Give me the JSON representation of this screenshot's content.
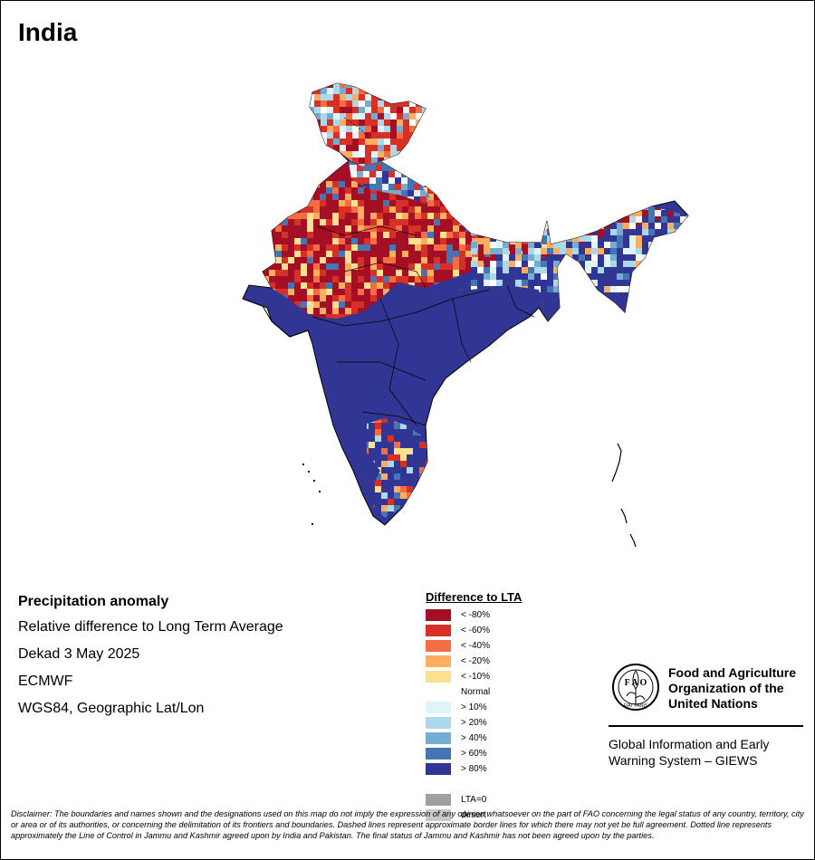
{
  "title": "India",
  "info": {
    "heading": "Precipitation anomaly",
    "line1": "Relative difference to Long Term Average",
    "line2": "Dekad 3 May 2025",
    "line3": "ECMWF",
    "line4": "WGS84, Geographic Lat/Lon"
  },
  "legend": {
    "title": "Difference to LTA",
    "items": [
      {
        "label": "< -80%",
        "color": "#a50f26"
      },
      {
        "label": "< -60%",
        "color": "#d73027"
      },
      {
        "label": "< -40%",
        "color": "#f46d43"
      },
      {
        "label": "< -20%",
        "color": "#fdae61"
      },
      {
        "label": "< -10%",
        "color": "#fee090"
      },
      {
        "label": "Normal",
        "color": "#ffffff"
      },
      {
        "label": "> 10%",
        "color": "#e0f3f8"
      },
      {
        "label": "> 20%",
        "color": "#abd9e9"
      },
      {
        "label": "> 40%",
        "color": "#74add1"
      },
      {
        "label": "> 60%",
        "color": "#4575b4"
      },
      {
        "label": "> 80%",
        "color": "#313695"
      },
      {
        "label": "",
        "color": "#ffffff"
      },
      {
        "label": "LTA=0",
        "color": "#a0a0a0"
      },
      {
        "label": "desert",
        "color": "#c8c8c8"
      }
    ]
  },
  "logo": {
    "letters": "F A O",
    "motto": "FIAT PANIS",
    "org_line1": "Food and Agriculture",
    "org_line2": "Organization of the",
    "org_line3": "United Nations",
    "system_line1": "Global Information and Early",
    "system_line2": "Warning System – GIEWS"
  },
  "disclaimer": "Disclaimer: The boundaries and names shown and the designations used on this map do not imply the expression of any opinion whatsoever on the part of FAO concerning the legal status of any country, territory, city or area or of its authorities, or concerning the delimitation of its frontiers and boundaries. Dashed lines represent approximate border lines for which there may not yet be full agreement. Dotted line represents approximately the Line of Control in Jammu and Kashmir agreed upon by India and Pakistan. The final status of Jammu and Kashmir has not been agreed upon by the parties.",
  "map": {
    "region": "India"
  }
}
